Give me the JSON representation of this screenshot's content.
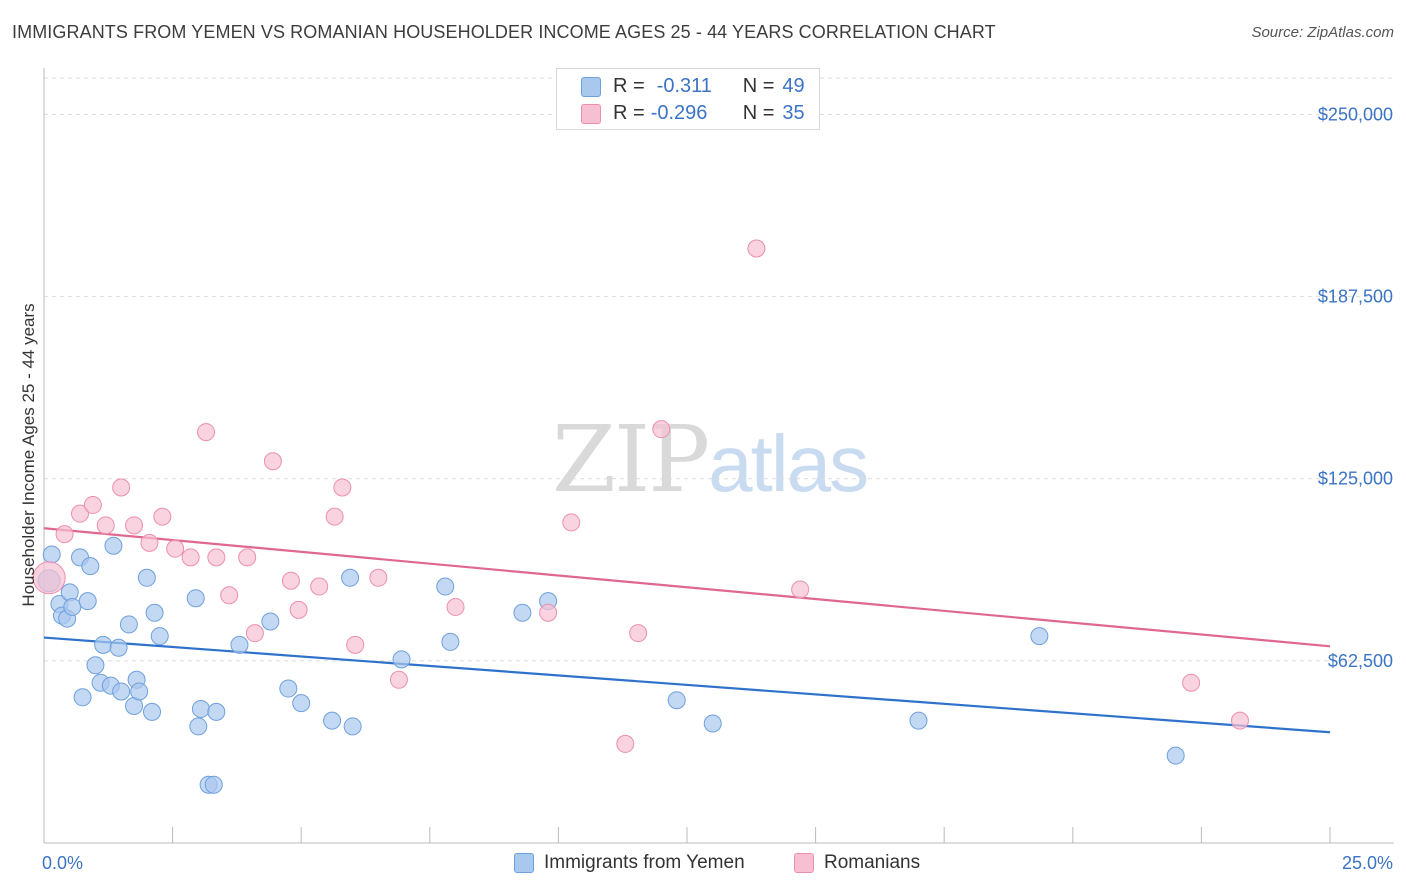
{
  "title": "IMMIGRANTS FROM YEMEN VS ROMANIAN HOUSEHOLDER INCOME AGES 25 - 44 YEARS CORRELATION CHART",
  "source": "Source: ZipAtlas.com",
  "watermark": {
    "zip": "ZIP",
    "atlas": "atlas"
  },
  "stats": [
    {
      "r_label": "R =",
      "r_value": "-0.311",
      "n_label": "N =",
      "n_value": "49",
      "color": "#a9c8ee",
      "border": "#6fa0dc"
    },
    {
      "r_label": "R =",
      "r_value": "-0.296",
      "n_label": "N =",
      "n_value": "35",
      "color": "#f7c0d2",
      "border": "#ec8fae"
    }
  ],
  "chart_data": {
    "type": "scatter",
    "title": "IMMIGRANTS FROM YEMEN VS ROMANIAN HOUSEHOLDER INCOME AGES 25 - 44 YEARS CORRELATION CHART",
    "xlabel": "",
    "ylabel": "Householder Income Ages 25 - 44 years",
    "xlim": [
      0,
      25
    ],
    "ylim": [
      0,
      262500
    ],
    "x_tick_labels": [
      "0.0%",
      "25.0%"
    ],
    "y_ticks": [
      62500,
      125000,
      187500,
      250000
    ],
    "y_tick_labels": [
      "$62,500",
      "$125,000",
      "$187,500",
      "$250,000"
    ],
    "grid": true,
    "legend_position": "bottom",
    "series": [
      {
        "name": "Immigrants from Yemen",
        "color": "#a9c8ee",
        "stroke": "#6fa0dc",
        "line_color": "#2f72cc",
        "trend": [
          [
            0,
            70500
          ],
          [
            25,
            38000
          ]
        ],
        "points": [
          [
            0.1,
            90000
          ],
          [
            0.15,
            99000
          ],
          [
            0.3,
            82000
          ],
          [
            0.35,
            78000
          ],
          [
            0.45,
            77000
          ],
          [
            0.5,
            86000
          ],
          [
            0.55,
            81000
          ],
          [
            0.7,
            98000
          ],
          [
            0.75,
            50000
          ],
          [
            0.85,
            83000
          ],
          [
            0.9,
            95000
          ],
          [
            1.0,
            61000
          ],
          [
            1.1,
            55000
          ],
          [
            1.15,
            68000
          ],
          [
            1.3,
            54000
          ],
          [
            1.45,
            67000
          ],
          [
            1.5,
            52000
          ],
          [
            1.65,
            75000
          ],
          [
            1.75,
            47000
          ],
          [
            1.8,
            56000
          ],
          [
            1.85,
            52000
          ],
          [
            1.35,
            102000
          ],
          [
            2.0,
            91000
          ],
          [
            2.1,
            45000
          ],
          [
            2.15,
            79000
          ],
          [
            2.25,
            71000
          ],
          [
            2.95,
            84000
          ],
          [
            3.0,
            40000
          ],
          [
            3.05,
            46000
          ],
          [
            3.2,
            20000
          ],
          [
            3.3,
            20000
          ],
          [
            3.35,
            45000
          ],
          [
            3.8,
            68000
          ],
          [
            4.4,
            76000
          ],
          [
            4.75,
            53000
          ],
          [
            5.0,
            48000
          ],
          [
            5.6,
            42000
          ],
          [
            5.95,
            91000
          ],
          [
            6.0,
            40000
          ],
          [
            6.95,
            63000
          ],
          [
            7.8,
            88000
          ],
          [
            7.9,
            69000
          ],
          [
            9.3,
            79000
          ],
          [
            9.8,
            83000
          ],
          [
            12.3,
            49000
          ],
          [
            13.0,
            41000
          ],
          [
            17.0,
            42000
          ],
          [
            19.35,
            71000
          ],
          [
            22.0,
            30000
          ]
        ]
      },
      {
        "name": "Romanians",
        "color": "#f7c0d2",
        "stroke": "#ec8fae",
        "line_color": "#e0678f",
        "trend": [
          [
            0,
            108000
          ],
          [
            25,
            67500
          ]
        ],
        "points": [
          [
            0.1,
            91000
          ],
          [
            0.4,
            106000
          ],
          [
            0.7,
            113000
          ],
          [
            0.95,
            116000
          ],
          [
            1.2,
            109000
          ],
          [
            1.5,
            122000
          ],
          [
            1.75,
            109000
          ],
          [
            2.05,
            103000
          ],
          [
            2.3,
            112000
          ],
          [
            2.55,
            101000
          ],
          [
            2.85,
            98000
          ],
          [
            3.15,
            141000
          ],
          [
            3.35,
            98000
          ],
          [
            3.6,
            85000
          ],
          [
            3.95,
            98000
          ],
          [
            4.1,
            72000
          ],
          [
            4.45,
            131000
          ],
          [
            4.8,
            90000
          ],
          [
            4.95,
            80000
          ],
          [
            5.35,
            88000
          ],
          [
            5.65,
            112000
          ],
          [
            5.8,
            122000
          ],
          [
            6.05,
            68000
          ],
          [
            6.5,
            91000
          ],
          [
            6.9,
            56000
          ],
          [
            8.0,
            81000
          ],
          [
            9.8,
            79000
          ],
          [
            10.25,
            110000
          ],
          [
            11.3,
            34000
          ],
          [
            11.55,
            72000
          ],
          [
            12.0,
            142000
          ],
          [
            13.85,
            204000
          ],
          [
            14.7,
            87000
          ],
          [
            22.3,
            55000
          ],
          [
            23.25,
            42000
          ]
        ]
      }
    ]
  }
}
